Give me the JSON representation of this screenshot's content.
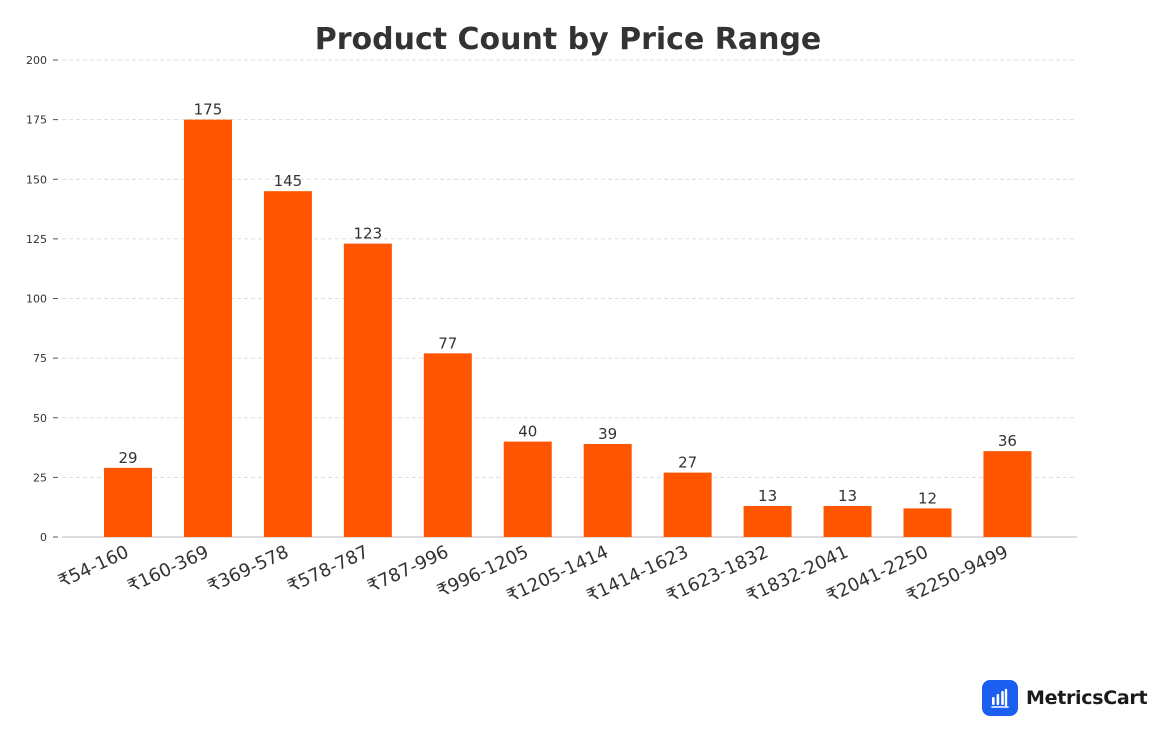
{
  "chart_data": {
    "type": "bar",
    "title": "Product Count by Price Range",
    "xlabel": "",
    "ylabel": "",
    "categories": [
      "₹54-160",
      "₹160-369",
      "₹369-578",
      "₹578-787",
      "₹787-996",
      "₹996-1205",
      "₹1205-1414",
      "₹1414-1623",
      "₹1623-1832",
      "₹1832-2041",
      "₹2041-2250",
      "₹2250-9499"
    ],
    "values": [
      29,
      175,
      145,
      123,
      77,
      40,
      39,
      27,
      13,
      13,
      12,
      36
    ],
    "ylim": [
      0,
      200
    ],
    "yticks": [
      0,
      25,
      50,
      75,
      100,
      125,
      150,
      175,
      200
    ],
    "grid": true,
    "legend": "none",
    "bar_color": "#ff5500"
  },
  "brand": {
    "name": "MetricsCart",
    "icon": "bar-chart-icon",
    "icon_color": "#1c5ff0"
  }
}
